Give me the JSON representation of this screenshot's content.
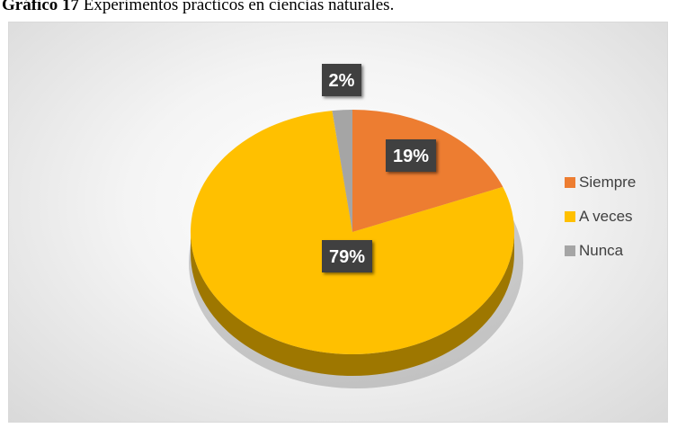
{
  "caption": {
    "prefix": "Gráfico 17",
    "text": " Experimentos prácticos en ciencias naturales."
  },
  "chart_data": {
    "type": "pie",
    "style": "3d",
    "categories": [
      "Siempre",
      "A veces",
      "Nunca"
    ],
    "values": [
      19,
      79,
      2
    ],
    "labels": [
      "19%",
      "79%",
      "2%"
    ],
    "colors": [
      "#ED7D31",
      "#FFC000",
      "#A5A5A5"
    ],
    "legend": "right"
  }
}
